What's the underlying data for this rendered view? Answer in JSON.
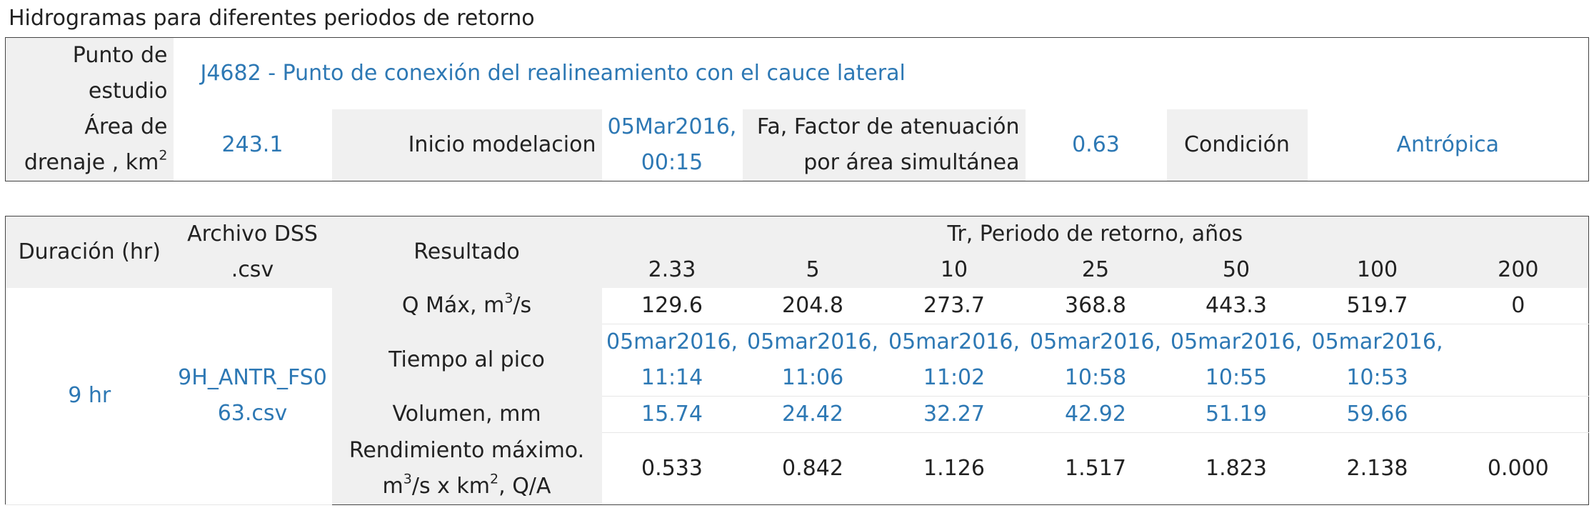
{
  "title": "Hidrogramas para diferentes periodos de retorno",
  "info": {
    "punto_label_1": "Punto de",
    "punto_label_2": "estudio",
    "punto_value": "J4682 - Punto de conexión del realineamiento con el cauce lateral",
    "area_label_1": "Área de",
    "area_label_2": "drenaje , km",
    "area_label_sup": "2",
    "area_value": "243.1",
    "inicio_label": "Inicio modelacion",
    "inicio_value_1": "05Mar2016,",
    "inicio_value_2": "00:15",
    "fa_label_1": "Fa, Factor de atenuación",
    "fa_label_2": "por área simultánea",
    "fa_value": "0.63",
    "condicion_label": "Condición",
    "condicion_value": "Antrópica"
  },
  "results": {
    "duracion_header": "Duración (hr)",
    "archivo_header_1": "Archivo DSS",
    "archivo_header_2": ".csv",
    "resultado_header": "Resultado",
    "tr_header": "Tr, Periodo de retorno, años",
    "periods": [
      "2.33",
      "5",
      "10",
      "25",
      "50",
      "100",
      "200"
    ],
    "duracion_value": "9 hr",
    "archivo_value_1": "9H_ANTR_FS0",
    "archivo_value_2": "63.csv",
    "qmax_label": "Q Máx, m",
    "qmax_label_sup": "3",
    "qmax_label_end": "/s",
    "qmax": [
      "129.6",
      "204.8",
      "273.7",
      "368.8",
      "443.3",
      "519.7",
      "0"
    ],
    "tiempo_label": "Tiempo al pico",
    "tiempo_date": [
      "05mar2016,",
      "05mar2016,",
      "05mar2016,",
      "05mar2016,",
      "05mar2016,",
      "05mar2016,",
      ""
    ],
    "tiempo_time": [
      "11:14",
      "11:06",
      "11:02",
      "10:58",
      "10:55",
      "10:53",
      ""
    ],
    "volumen_label": "Volumen, mm",
    "volumen": [
      "15.74",
      "24.42",
      "32.27",
      "42.92",
      "51.19",
      "59.66",
      ""
    ],
    "rend_label_1": "Rendimiento máximo.",
    "rend_label_2a": "m",
    "rend_label_2sup": "3",
    "rend_label_2b": "/s x km",
    "rend_label_2sup2": "2",
    "rend_label_2c": ", Q/A",
    "rendimiento": [
      "0.533",
      "0.842",
      "1.126",
      "1.517",
      "1.823",
      "2.138",
      "0.000"
    ]
  },
  "colors": {
    "link_blue": "#2d78b4",
    "header_gray": "#f0f0f0",
    "border": "#444444"
  }
}
